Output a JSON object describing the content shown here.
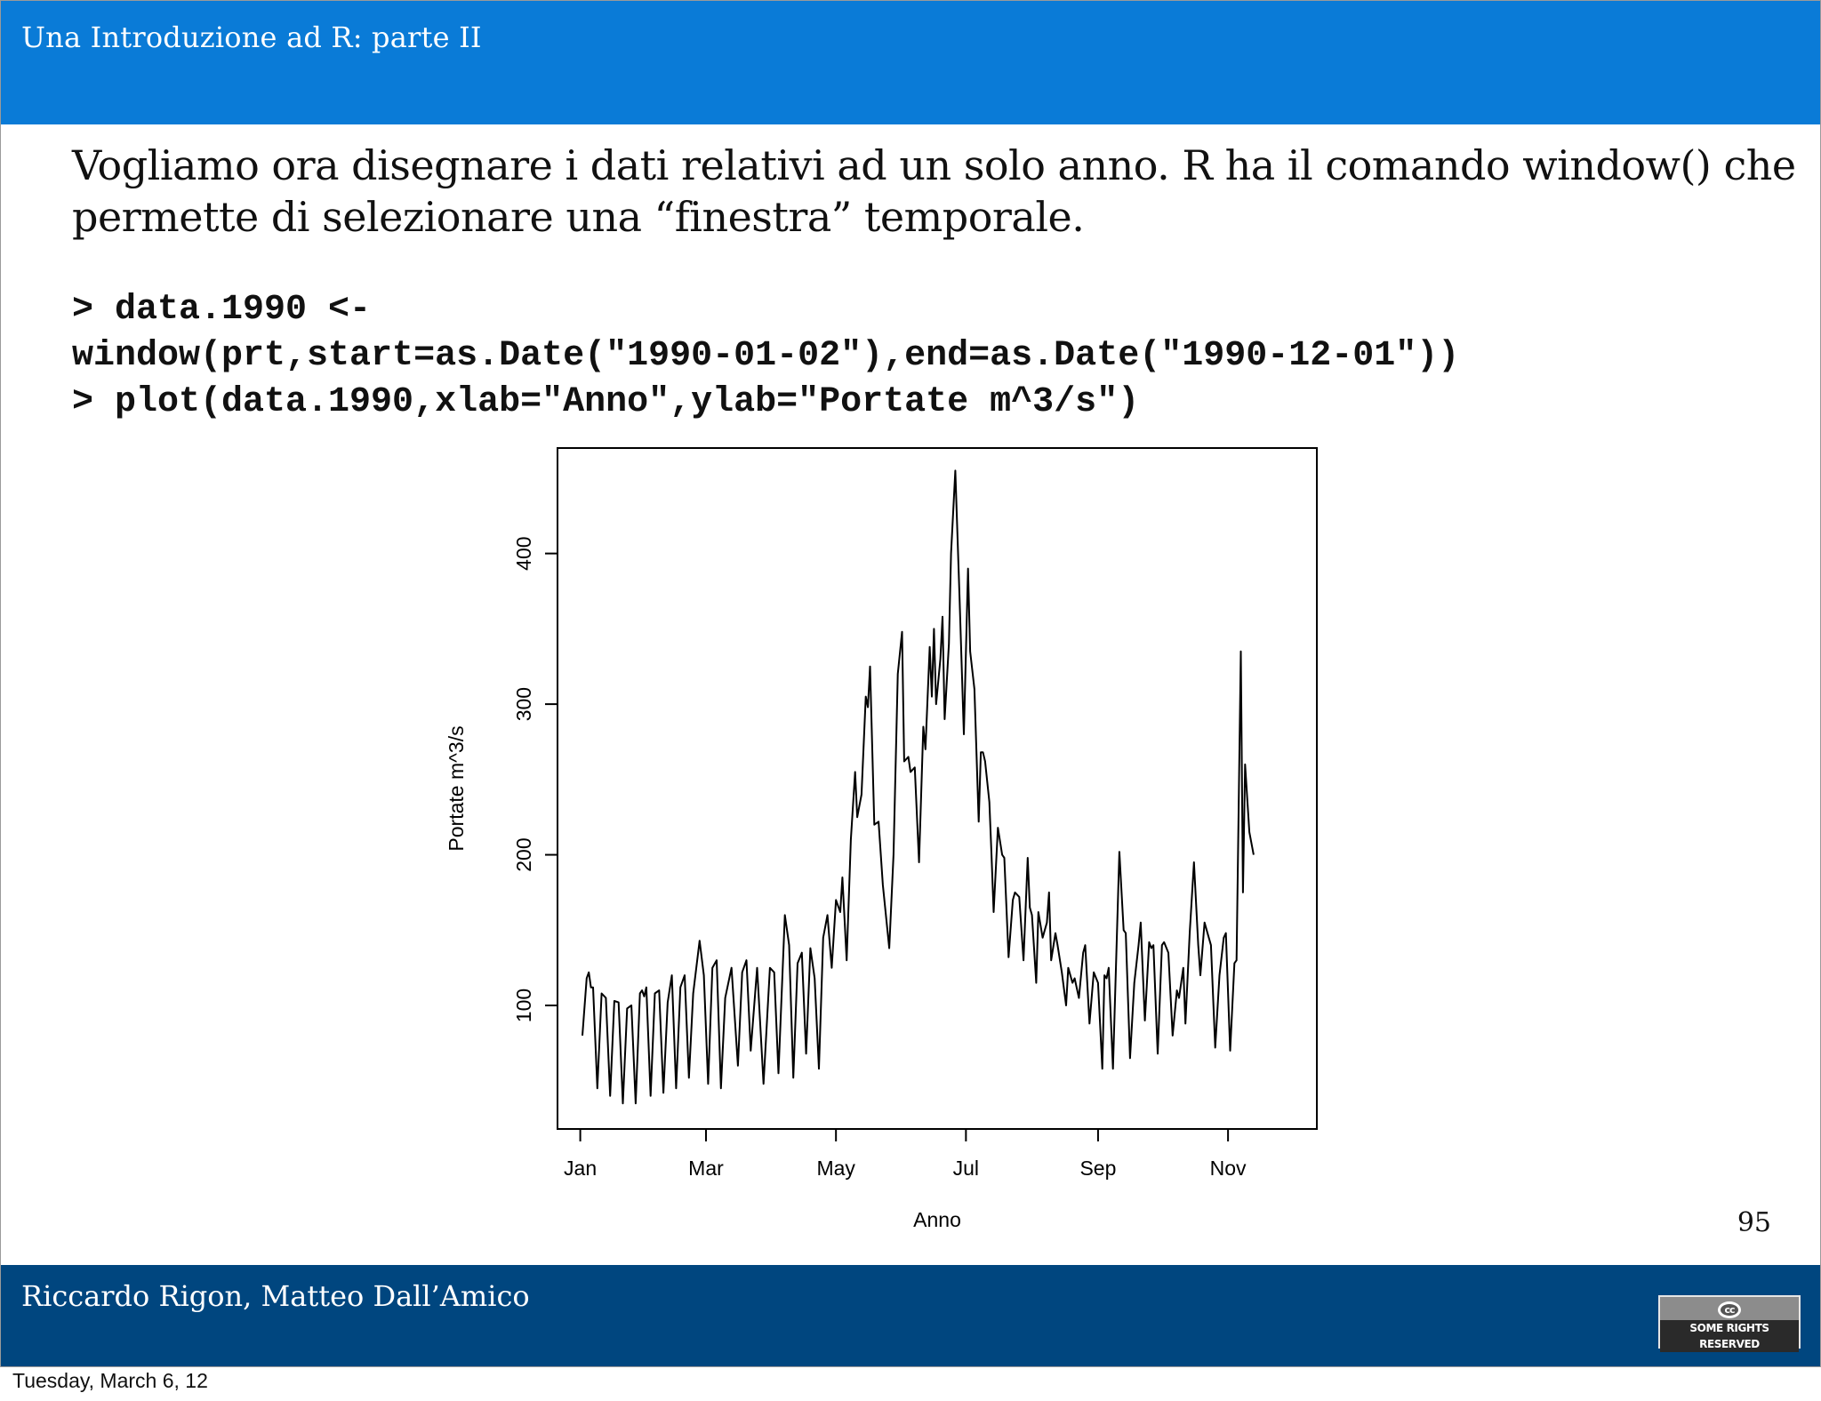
{
  "header": {
    "title": "Una Introduzione ad R: parte II"
  },
  "intro_text": "Vogliamo ora disegnare i dati relativi ad un solo anno. R ha il comando window() che permette di selezionare una “finestra” temporale.",
  "code_lines": [
    "> data.1990 <-",
    "window(prt,start=as.Date(\"1990-01-02\"),end=as.Date(\"1990-12-01\"))",
    "> plot(data.1990,xlab=\"Anno\",ylab=\"Portate m^3/s\")"
  ],
  "page_number": "95",
  "footer": {
    "authors": "Riccardo Rigon, Matteo Dall’Amico",
    "license_badge": "SOME RIGHTS RESERVED",
    "license_icon": "cc-icon"
  },
  "timestamp": "Tuesday, March 6, 12",
  "colors": {
    "header": "#0a7bd7",
    "footer": "#00467f",
    "line": "#000000"
  },
  "chart_data": {
    "type": "line",
    "xlabel": "Anno",
    "ylabel": "Portate m^3/s",
    "xlim": [
      "1990-01-02",
      "1990-12-01"
    ],
    "ylim": [
      18,
      470
    ],
    "x_ticks": [
      {
        "date": "1990-01-01",
        "label": "Jan"
      },
      {
        "date": "1990-03-01",
        "label": "Mar"
      },
      {
        "date": "1990-05-01",
        "label": "May"
      },
      {
        "date": "1990-07-01",
        "label": "Jul"
      },
      {
        "date": "1990-09-01",
        "label": "Sep"
      },
      {
        "date": "1990-11-01",
        "label": "Nov"
      }
    ],
    "y_ticks": [
      100,
      200,
      300,
      400
    ],
    "series": [
      {
        "points": [
          [
            "1990-01-02",
            80
          ],
          [
            "1990-01-04",
            118
          ],
          [
            "1990-01-05",
            122
          ],
          [
            "1990-01-06",
            112
          ],
          [
            "1990-01-07",
            112
          ],
          [
            "1990-01-09",
            45
          ],
          [
            "1990-01-11",
            108
          ],
          [
            "1990-01-13",
            105
          ],
          [
            "1990-01-15",
            40
          ],
          [
            "1990-01-17",
            103
          ],
          [
            "1990-01-19",
            102
          ],
          [
            "1990-01-21",
            35
          ],
          [
            "1990-01-23",
            98
          ],
          [
            "1990-01-25",
            100
          ],
          [
            "1990-01-27",
            35
          ],
          [
            "1990-01-29",
            108
          ],
          [
            "1990-01-30",
            110
          ],
          [
            "1990-01-31",
            106
          ],
          [
            "1990-02-01",
            112
          ],
          [
            "1990-02-03",
            40
          ],
          [
            "1990-02-05",
            108
          ],
          [
            "1990-02-07",
            110
          ],
          [
            "1990-02-09",
            42
          ],
          [
            "1990-02-11",
            102
          ],
          [
            "1990-02-13",
            120
          ],
          [
            "1990-02-15",
            45
          ],
          [
            "1990-02-17",
            112
          ],
          [
            "1990-02-19",
            120
          ],
          [
            "1990-02-21",
            52
          ],
          [
            "1990-02-23",
            108
          ],
          [
            "1990-02-26",
            143
          ],
          [
            "1990-02-28",
            120
          ],
          [
            "1990-03-02",
            48
          ],
          [
            "1990-03-04",
            125
          ],
          [
            "1990-03-06",
            130
          ],
          [
            "1990-03-08",
            45
          ],
          [
            "1990-03-10",
            105
          ],
          [
            "1990-03-13",
            125
          ],
          [
            "1990-03-16",
            60
          ],
          [
            "1990-03-18",
            122
          ],
          [
            "1990-03-20",
            130
          ],
          [
            "1990-03-22",
            70
          ],
          [
            "1990-03-25",
            125
          ],
          [
            "1990-03-28",
            48
          ],
          [
            "1990-03-31",
            125
          ],
          [
            "1990-04-02",
            122
          ],
          [
            "1990-04-04",
            55
          ],
          [
            "1990-04-07",
            160
          ],
          [
            "1990-04-09",
            140
          ],
          [
            "1990-04-11",
            52
          ],
          [
            "1990-04-13",
            128
          ],
          [
            "1990-04-15",
            135
          ],
          [
            "1990-04-17",
            68
          ],
          [
            "1990-04-19",
            138
          ],
          [
            "1990-04-21",
            118
          ],
          [
            "1990-04-23",
            58
          ],
          [
            "1990-04-25",
            145
          ],
          [
            "1990-04-27",
            160
          ],
          [
            "1990-04-29",
            125
          ],
          [
            "1990-05-01",
            170
          ],
          [
            "1990-05-03",
            162
          ],
          [
            "1990-05-04",
            185
          ],
          [
            "1990-05-06",
            130
          ],
          [
            "1990-05-08",
            210
          ],
          [
            "1990-05-10",
            255
          ],
          [
            "1990-05-11",
            225
          ],
          [
            "1990-05-13",
            240
          ],
          [
            "1990-05-15",
            305
          ],
          [
            "1990-05-16",
            298
          ],
          [
            "1990-05-17",
            325
          ],
          [
            "1990-05-19",
            220
          ],
          [
            "1990-05-21",
            222
          ],
          [
            "1990-05-23",
            180
          ],
          [
            "1990-05-26",
            138
          ],
          [
            "1990-05-28",
            200
          ],
          [
            "1990-05-30",
            320
          ],
          [
            "1990-06-01",
            348
          ],
          [
            "1990-06-02",
            262
          ],
          [
            "1990-06-04",
            265
          ],
          [
            "1990-06-05",
            255
          ],
          [
            "1990-06-07",
            258
          ],
          [
            "1990-06-09",
            195
          ],
          [
            "1990-06-11",
            285
          ],
          [
            "1990-06-12",
            270
          ],
          [
            "1990-06-14",
            338
          ],
          [
            "1990-06-15",
            305
          ],
          [
            "1990-06-16",
            350
          ],
          [
            "1990-06-17",
            300
          ],
          [
            "1990-06-19",
            330
          ],
          [
            "1990-06-20",
            358
          ],
          [
            "1990-06-21",
            290
          ],
          [
            "1990-06-23",
            340
          ],
          [
            "1990-06-24",
            400
          ],
          [
            "1990-06-26",
            455
          ],
          [
            "1990-06-28",
            370
          ],
          [
            "1990-06-30",
            280
          ],
          [
            "1990-07-02",
            390
          ],
          [
            "1990-07-03",
            335
          ],
          [
            "1990-07-05",
            310
          ],
          [
            "1990-07-07",
            222
          ],
          [
            "1990-07-08",
            268
          ],
          [
            "1990-07-09",
            268
          ],
          [
            "1990-07-10",
            262
          ],
          [
            "1990-07-12",
            235
          ],
          [
            "1990-07-13",
            200
          ],
          [
            "1990-07-14",
            162
          ],
          [
            "1990-07-16",
            218
          ],
          [
            "1990-07-18",
            200
          ],
          [
            "1990-07-19",
            198
          ],
          [
            "1990-07-21",
            132
          ],
          [
            "1990-07-23",
            170
          ],
          [
            "1990-07-24",
            175
          ],
          [
            "1990-07-26",
            172
          ],
          [
            "1990-07-28",
            130
          ],
          [
            "1990-07-30",
            198
          ],
          [
            "1990-07-31",
            165
          ],
          [
            "1990-08-01",
            160
          ],
          [
            "1990-08-03",
            115
          ],
          [
            "1990-08-04",
            162
          ],
          [
            "1990-08-06",
            145
          ],
          [
            "1990-08-08",
            155
          ],
          [
            "1990-08-09",
            175
          ],
          [
            "1990-08-10",
            130
          ],
          [
            "1990-08-12",
            148
          ],
          [
            "1990-08-13",
            140
          ],
          [
            "1990-08-15",
            122
          ],
          [
            "1990-08-17",
            100
          ],
          [
            "1990-08-18",
            125
          ],
          [
            "1990-08-20",
            115
          ],
          [
            "1990-08-21",
            118
          ],
          [
            "1990-08-23",
            105
          ],
          [
            "1990-08-25",
            135
          ],
          [
            "1990-08-26",
            140
          ],
          [
            "1990-08-28",
            88
          ],
          [
            "1990-08-30",
            122
          ],
          [
            "1990-09-01",
            115
          ],
          [
            "1990-09-03",
            58
          ],
          [
            "1990-09-04",
            120
          ],
          [
            "1990-09-05",
            118
          ],
          [
            "1990-09-06",
            125
          ],
          [
            "1990-09-08",
            58
          ],
          [
            "1990-09-11",
            202
          ],
          [
            "1990-09-13",
            150
          ],
          [
            "1990-09-14",
            148
          ],
          [
            "1990-09-16",
            65
          ],
          [
            "1990-09-18",
            115
          ],
          [
            "1990-09-20",
            140
          ],
          [
            "1990-09-21",
            155
          ],
          [
            "1990-09-23",
            90
          ],
          [
            "1990-09-25",
            142
          ],
          [
            "1990-09-26",
            138
          ],
          [
            "1990-09-27",
            140
          ],
          [
            "1990-09-29",
            68
          ],
          [
            "1990-10-01",
            140
          ],
          [
            "1990-10-02",
            142
          ],
          [
            "1990-10-04",
            135
          ],
          [
            "1990-10-06",
            80
          ],
          [
            "1990-10-08",
            110
          ],
          [
            "1990-10-09",
            105
          ],
          [
            "1990-10-11",
            125
          ],
          [
            "1990-10-12",
            88
          ],
          [
            "1990-10-14",
            148
          ],
          [
            "1990-10-16",
            195
          ],
          [
            "1990-10-18",
            140
          ],
          [
            "1990-10-19",
            120
          ],
          [
            "1990-10-21",
            155
          ],
          [
            "1990-10-23",
            145
          ],
          [
            "1990-10-24",
            140
          ],
          [
            "1990-10-26",
            72
          ],
          [
            "1990-10-28",
            120
          ],
          [
            "1990-10-30",
            145
          ],
          [
            "1990-10-31",
            148
          ],
          [
            "1990-11-02",
            70
          ],
          [
            "1990-11-04",
            128
          ],
          [
            "1990-11-05",
            130
          ],
          [
            "1990-11-07",
            335
          ],
          [
            "1990-11-08",
            175
          ],
          [
            "1990-11-09",
            260
          ],
          [
            "1990-11-11",
            215
          ],
          [
            "1990-11-13",
            200
          ]
        ]
      }
    ]
  }
}
